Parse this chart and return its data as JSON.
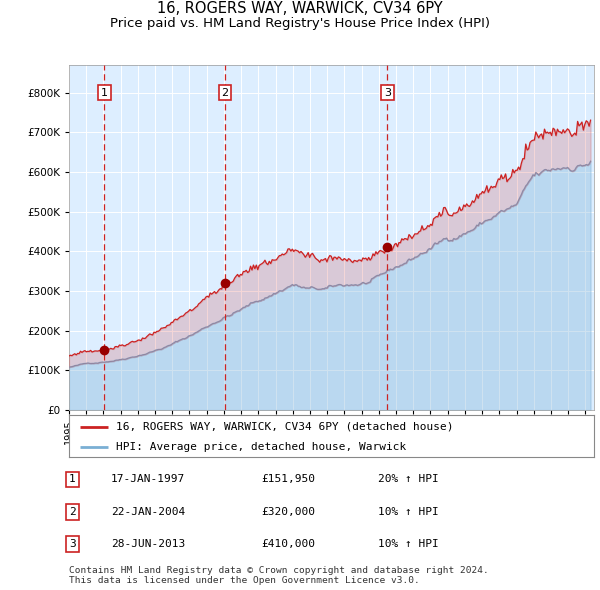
{
  "title": "16, ROGERS WAY, WARWICK, CV34 6PY",
  "subtitle": "Price paid vs. HM Land Registry's House Price Index (HPI)",
  "title_fontsize": 10.5,
  "subtitle_fontsize": 9.5,
  "xlim_start": 1995.0,
  "xlim_end": 2025.5,
  "ylim_min": 0,
  "ylim_max": 870000,
  "hpi_color": "#7aafd4",
  "price_color": "#cc2222",
  "background_color": "#ddeeff",
  "purchase_dates": [
    1997.05,
    2004.07,
    2013.49
  ],
  "purchase_prices": [
    151950,
    320000,
    410000
  ],
  "purchase_labels": [
    "1",
    "2",
    "3"
  ],
  "legend_price_label": "16, ROGERS WAY, WARWICK, CV34 6PY (detached house)",
  "legend_hpi_label": "HPI: Average price, detached house, Warwick",
  "table_rows": [
    [
      "1",
      "17-JAN-1997",
      "£151,950",
      "20% ↑ HPI"
    ],
    [
      "2",
      "22-JAN-2004",
      "£320,000",
      "10% ↑ HPI"
    ],
    [
      "3",
      "28-JUN-2013",
      "£410,000",
      "10% ↑ HPI"
    ]
  ],
  "footnote": "Contains HM Land Registry data © Crown copyright and database right 2024.\nThis data is licensed under the Open Government Licence v3.0.",
  "yticks": [
    0,
    100000,
    200000,
    300000,
    400000,
    500000,
    600000,
    700000,
    800000
  ],
  "ytick_labels": [
    "£0",
    "£100K",
    "£200K",
    "£300K",
    "£400K",
    "£500K",
    "£600K",
    "£700K",
    "£800K"
  ],
  "xticks": [
    1995,
    1996,
    1997,
    1998,
    1999,
    2000,
    2001,
    2002,
    2003,
    2004,
    2005,
    2006,
    2007,
    2008,
    2009,
    2010,
    2011,
    2012,
    2013,
    2014,
    2015,
    2016,
    2017,
    2018,
    2019,
    2020,
    2021,
    2022,
    2023,
    2024,
    2025
  ]
}
